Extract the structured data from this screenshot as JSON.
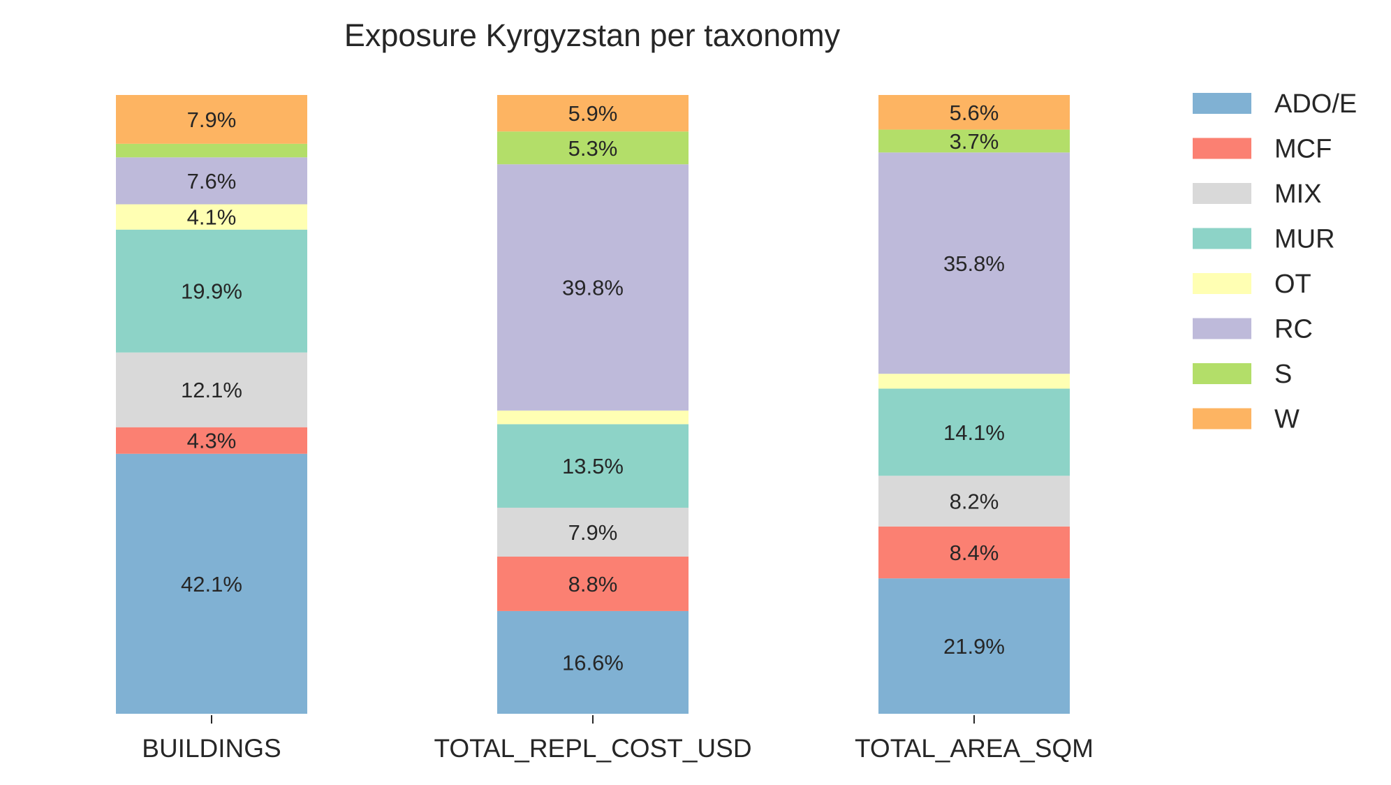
{
  "chart_data": {
    "type": "bar",
    "stacked": true,
    "normalized_percent": true,
    "title": "Exposure Kyrgyzstan per taxonomy",
    "xlabel": "",
    "ylabel": "",
    "ylim": [
      0,
      100
    ],
    "grid": false,
    "legend_position": "right",
    "categories": [
      "BUILDINGS",
      "TOTAL_REPL_COST_USD",
      "TOTAL_AREA_SQM"
    ],
    "series": [
      {
        "name": "ADO/E",
        "color": "#80b1d3",
        "values": [
          42.1,
          16.6,
          21.9
        ],
        "labels": [
          "42.1%",
          "16.6%",
          "21.9%"
        ]
      },
      {
        "name": "MCF",
        "color": "#fb8072",
        "values": [
          4.3,
          8.8,
          8.4
        ],
        "labels": [
          "4.3%",
          "8.8%",
          "8.4%"
        ]
      },
      {
        "name": "MIX",
        "color": "#d9d9d9",
        "values": [
          12.1,
          7.9,
          8.2
        ],
        "labels": [
          "12.1%",
          "7.9%",
          "8.2%"
        ]
      },
      {
        "name": "MUR",
        "color": "#8dd3c7",
        "values": [
          19.9,
          13.5,
          14.1
        ],
        "labels": [
          "19.9%",
          "13.5%",
          "14.1%"
        ]
      },
      {
        "name": "OT",
        "color": "#ffffb3",
        "values": [
          4.1,
          2.2,
          2.4
        ],
        "labels": [
          "4.1%",
          "",
          ""
        ]
      },
      {
        "name": "RC",
        "color": "#bebada",
        "values": [
          7.6,
          39.8,
          35.8
        ],
        "labels": [
          "7.6%",
          "39.8%",
          "35.8%"
        ]
      },
      {
        "name": "S",
        "color": "#b3de69",
        "values": [
          2.2,
          5.3,
          3.7
        ],
        "labels": [
          "",
          "5.3%",
          "3.7%"
        ]
      },
      {
        "name": "W",
        "color": "#fdb462",
        "values": [
          7.9,
          5.9,
          5.6
        ],
        "labels": [
          "7.9%",
          "5.9%",
          "5.6%"
        ]
      }
    ]
  }
}
